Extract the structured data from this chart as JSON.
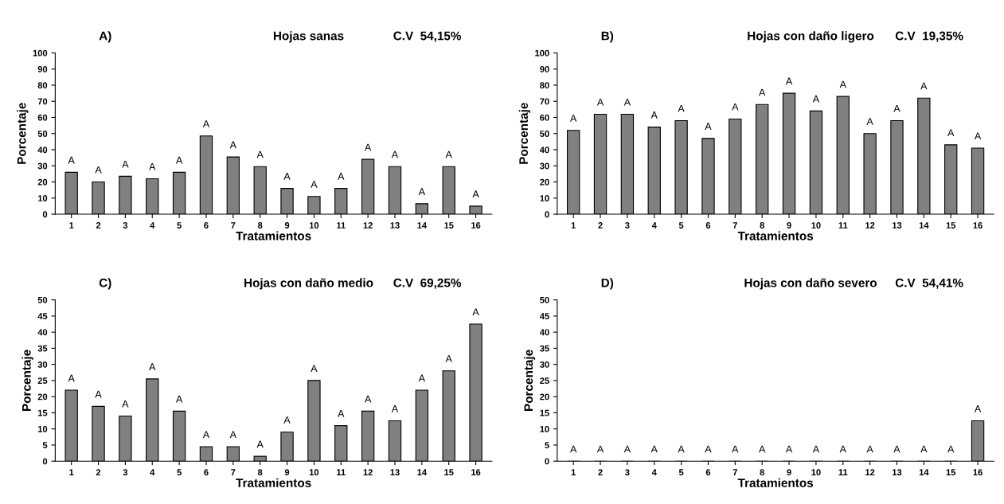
{
  "chart_data": [
    {
      "type": "bar",
      "title": "A)",
      "subtitle": "Hojas sanas",
      "annotations": [
        "C.V  54,15%"
      ],
      "xlabel": "Tratamientos",
      "ylabel": "Porcentaje",
      "categories": [
        "1",
        "2",
        "3",
        "4",
        "5",
        "6",
        "7",
        "8",
        "9",
        "10",
        "11",
        "12",
        "13",
        "14",
        "15",
        "16"
      ],
      "values": [
        26,
        20,
        23.5,
        22,
        26,
        48.5,
        35.5,
        29.5,
        16,
        11,
        16,
        34,
        29.5,
        6.5,
        29.5,
        5
      ],
      "value_labels": [
        "A",
        "A",
        "A",
        "A",
        "A",
        "A",
        "A",
        "A",
        "A",
        "A",
        "A",
        "A",
        "A",
        "A",
        "A",
        "A"
      ],
      "color": "#808080",
      "ylim": [
        0,
        100
      ],
      "yticks": [
        0,
        10,
        20,
        30,
        40,
        50,
        60,
        70,
        80,
        90,
        100
      ],
      "grid": false,
      "legend": false
    },
    {
      "type": "bar",
      "title": "B)",
      "subtitle": "Hojas con daño ligero",
      "annotations": [
        "C.V  19,35%"
      ],
      "xlabel": "Tratamientos",
      "ylabel": "Porcentaje",
      "categories": [
        "1",
        "2",
        "3",
        "4",
        "5",
        "6",
        "7",
        "8",
        "9",
        "10",
        "11",
        "12",
        "13",
        "14",
        "15",
        "16"
      ],
      "values": [
        52,
        62,
        62,
        54,
        58,
        47,
        59,
        68,
        75,
        64,
        73,
        50,
        58,
        72,
        43,
        41
      ],
      "value_labels": [
        "A",
        "A",
        "A",
        "A",
        "A",
        "A",
        "A",
        "A",
        "A",
        "A",
        "A",
        "A",
        "A",
        "A",
        "A",
        "A"
      ],
      "color": "#808080",
      "ylim": [
        0,
        100
      ],
      "yticks": [
        0,
        10,
        20,
        30,
        40,
        50,
        60,
        70,
        80,
        90,
        100
      ],
      "grid": false,
      "legend": false
    },
    {
      "type": "bar",
      "title": "C)",
      "subtitle": "Hojas con daño medio",
      "annotations": [
        "C.V  69,25%"
      ],
      "xlabel": "Tratamientos",
      "ylabel": "Porcentaje",
      "categories": [
        "1",
        "2",
        "3",
        "4",
        "5",
        "6",
        "7",
        "8",
        "9",
        "10",
        "11",
        "12",
        "13",
        "14",
        "15",
        "16"
      ],
      "values": [
        22,
        17,
        14,
        25.5,
        15.5,
        4.5,
        4.5,
        1.5,
        9,
        25,
        11,
        15.5,
        12.5,
        22,
        28,
        42.5
      ],
      "value_labels": [
        "A",
        "A",
        "A",
        "A",
        "A",
        "A",
        "A",
        "A",
        "A",
        "A",
        "A",
        "A",
        "A",
        "A",
        "A",
        "A"
      ],
      "color": "#808080",
      "ylim": [
        0,
        50
      ],
      "yticks": [
        0,
        5,
        10,
        15,
        20,
        25,
        30,
        35,
        40,
        45,
        50
      ],
      "grid": false,
      "legend": false
    },
    {
      "type": "bar",
      "title": "D)",
      "subtitle": "Hojas con daño severo",
      "annotations": [
        "C.V  54,41%"
      ],
      "xlabel": "Tratamientos",
      "ylabel": "Porcentaje",
      "categories": [
        "1",
        "2",
        "3",
        "4",
        "5",
        "6",
        "7",
        "8",
        "9",
        "10",
        "11",
        "12",
        "13",
        "14",
        "15",
        "16"
      ],
      "values": [
        0,
        0,
        0,
        0,
        0,
        0,
        0,
        0,
        0,
        0,
        0,
        0,
        0,
        0,
        0,
        12.5
      ],
      "value_labels": [
        "A",
        "A",
        "A",
        "A",
        "A",
        "A",
        "A",
        "A",
        "A",
        "A",
        "A",
        "A",
        "A",
        "A",
        "A",
        "A"
      ],
      "color": "#808080",
      "ylim": [
        0,
        50
      ],
      "yticks": [
        0,
        5,
        10,
        15,
        20,
        25,
        30,
        35,
        40,
        45,
        50
      ],
      "grid": false,
      "legend": false
    }
  ]
}
